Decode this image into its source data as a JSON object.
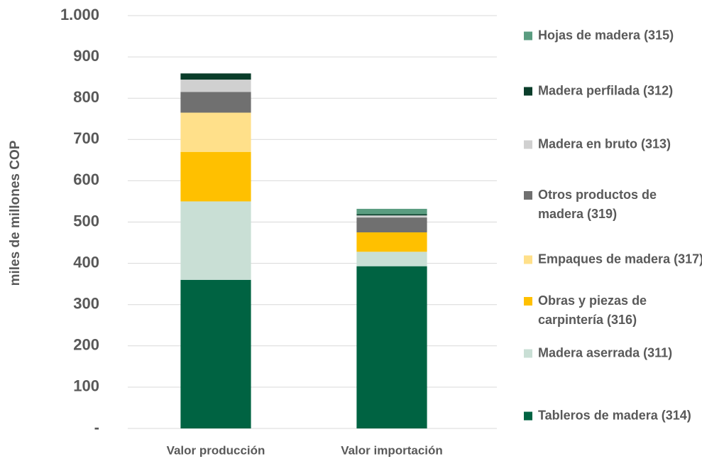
{
  "chart_data": {
    "type": "stacked_bar",
    "y_label": "miles de millones COP",
    "categories": [
      "Valor producción",
      "Valor importación"
    ],
    "series": [
      {
        "name": "Tableros de madera (314)",
        "color": "#006342",
        "values": [
          360,
          393
        ]
      },
      {
        "name": "Madera aserrada (311)",
        "color": "#c9dfd5",
        "values": [
          190,
          35
        ]
      },
      {
        "name": "Obras y piezas de carpintería (316)",
        "color": "#ffc000",
        "values": [
          120,
          47
        ]
      },
      {
        "name": "Empaques de madera (317)",
        "color": "#ffe08a",
        "values": [
          95,
          0
        ]
      },
      {
        "name": "Otros productos de madera (319)",
        "color": "#707070",
        "values": [
          50,
          36
        ]
      },
      {
        "name": "Madera en bruto (313)",
        "color": "#d0d0d0",
        "values": [
          30,
          5
        ]
      },
      {
        "name": "Madera perfilada (312)",
        "color": "#0a3d2a",
        "values": [
          15,
          3
        ]
      },
      {
        "name": "Hojas de madera (315)",
        "color": "#5a9c80",
        "values": [
          0,
          13
        ]
      }
    ],
    "ylim": [
      0,
      1000
    ],
    "yticks": [
      {
        "value": 0,
        "label": "-"
      },
      100,
      200,
      300,
      400,
      500,
      600,
      700,
      800,
      900,
      {
        "value": 1000,
        "label": "1.000"
      }
    ],
    "grid": true,
    "legend": "right"
  }
}
